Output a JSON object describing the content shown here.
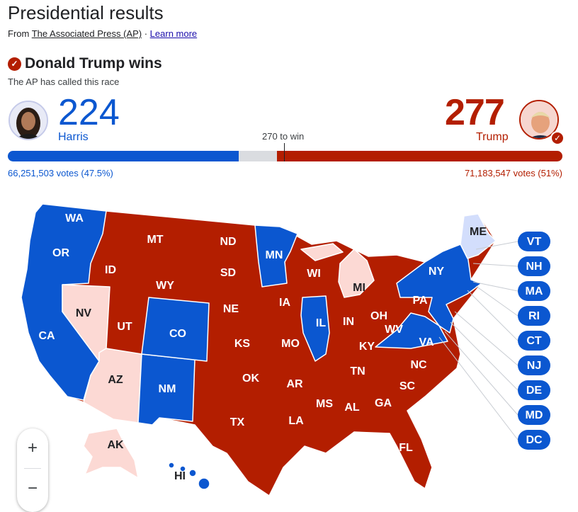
{
  "header": {
    "title": "Presidential results",
    "source_prefix": "From",
    "source_link": "The Associated Press (AP)",
    "separator": "·",
    "learn_more": "Learn more"
  },
  "result": {
    "headline": "Donald Trump wins",
    "subtext": "The AP has called this race",
    "check_icon": "check-circle-icon"
  },
  "candidates": {
    "harris": {
      "name": "Harris",
      "electoral_votes": "224",
      "votes_text": "66,251,503 votes (47.5%)",
      "color": "#0b57d0"
    },
    "trump": {
      "name": "Trump",
      "electoral_votes": "277",
      "votes_text": "71,183,547 votes (51%)",
      "color": "#b31e00"
    }
  },
  "bar": {
    "threshold_label": "270 to win",
    "total": 538,
    "harris": 224,
    "trump": 277,
    "threshold": 270
  },
  "colors": {
    "dem": "#0b57d0",
    "rep": "#b31e00",
    "lean_dem": "#d3defc",
    "lean_rep": "#fcd9d4",
    "uncalled": "#dadce0"
  },
  "map": {
    "states": [
      {
        "code": "WA",
        "winner": "dem"
      },
      {
        "code": "OR",
        "winner": "dem"
      },
      {
        "code": "CA",
        "winner": "dem"
      },
      {
        "code": "NV",
        "winner": "lean_rep"
      },
      {
        "code": "ID",
        "winner": "rep"
      },
      {
        "code": "MT",
        "winner": "rep"
      },
      {
        "code": "WY",
        "winner": "rep"
      },
      {
        "code": "UT",
        "winner": "rep"
      },
      {
        "code": "CO",
        "winner": "dem"
      },
      {
        "code": "AZ",
        "winner": "lean_rep"
      },
      {
        "code": "NM",
        "winner": "dem"
      },
      {
        "code": "ND",
        "winner": "rep"
      },
      {
        "code": "SD",
        "winner": "rep"
      },
      {
        "code": "NE",
        "winner": "rep"
      },
      {
        "code": "KS",
        "winner": "rep"
      },
      {
        "code": "OK",
        "winner": "rep"
      },
      {
        "code": "TX",
        "winner": "rep"
      },
      {
        "code": "MN",
        "winner": "dem"
      },
      {
        "code": "IA",
        "winner": "rep"
      },
      {
        "code": "MO",
        "winner": "rep"
      },
      {
        "code": "AR",
        "winner": "rep"
      },
      {
        "code": "LA",
        "winner": "rep"
      },
      {
        "code": "WI",
        "winner": "rep"
      },
      {
        "code": "IL",
        "winner": "dem"
      },
      {
        "code": "MI",
        "winner": "lean_rep"
      },
      {
        "code": "IN",
        "winner": "rep"
      },
      {
        "code": "OH",
        "winner": "rep"
      },
      {
        "code": "KY",
        "winner": "rep"
      },
      {
        "code": "TN",
        "winner": "rep"
      },
      {
        "code": "MS",
        "winner": "rep"
      },
      {
        "code": "AL",
        "winner": "rep"
      },
      {
        "code": "GA",
        "winner": "rep"
      },
      {
        "code": "FL",
        "winner": "rep"
      },
      {
        "code": "SC",
        "winner": "rep"
      },
      {
        "code": "NC",
        "winner": "rep"
      },
      {
        "code": "VA",
        "winner": "dem"
      },
      {
        "code": "WV",
        "winner": "rep"
      },
      {
        "code": "PA",
        "winner": "rep"
      },
      {
        "code": "NY",
        "winner": "dem"
      },
      {
        "code": "ME",
        "winner": "lean_dem"
      },
      {
        "code": "AK",
        "winner": "lean_rep"
      },
      {
        "code": "HI",
        "winner": "dem"
      }
    ],
    "small_states": [
      "VT",
      "NH",
      "MA",
      "RI",
      "CT",
      "NJ",
      "DE",
      "MD",
      "DC"
    ],
    "zoom_in": "+",
    "zoom_out": "−"
  }
}
